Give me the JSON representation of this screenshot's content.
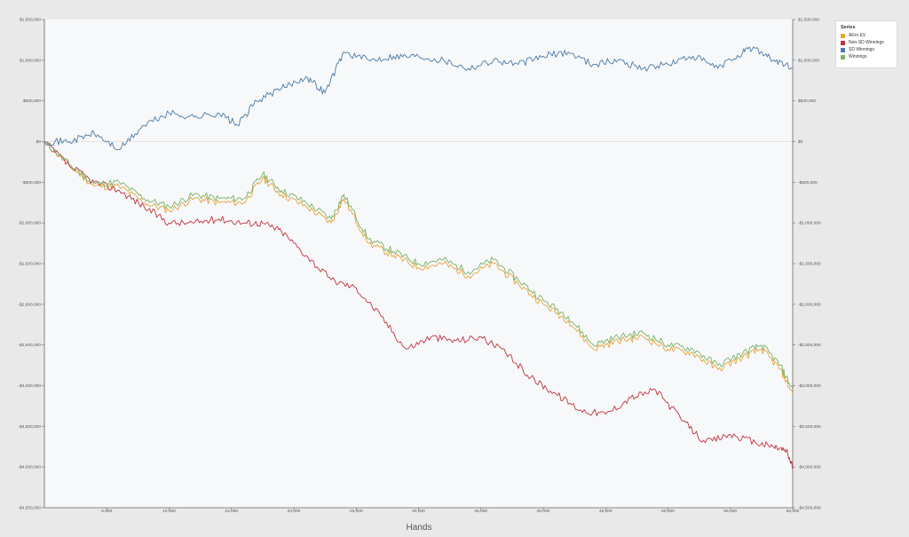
{
  "chart_data": {
    "type": "line",
    "xlabel": "Hands",
    "ylabel": "",
    "xlim": [
      0,
      60000
    ],
    "ylim": [
      -4500000,
      1500000
    ],
    "grid": false,
    "legend_position": "top-right",
    "legend_title": "Series",
    "x_ticks": [
      {
        "value": 5000,
        "label": "5,000"
      },
      {
        "value": 10000,
        "label": "10,000"
      },
      {
        "value": 15000,
        "label": "15,000"
      },
      {
        "value": 20000,
        "label": "20,000"
      },
      {
        "value": 25000,
        "label": "25,000"
      },
      {
        "value": 30000,
        "label": "30,000"
      },
      {
        "value": 35000,
        "label": "35,000"
      },
      {
        "value": 40000,
        "label": "40,000"
      },
      {
        "value": 45000,
        "label": "45,000"
      },
      {
        "value": 50000,
        "label": "50,000"
      },
      {
        "value": 55000,
        "label": "55,000"
      },
      {
        "value": 60000,
        "label": "60,000"
      }
    ],
    "y_ticks": [
      {
        "value": 1500000,
        "label": "$1,500,000"
      },
      {
        "value": 1000000,
        "label": "$1,000,000"
      },
      {
        "value": 500000,
        "label": "$500,000"
      },
      {
        "value": 0,
        "label": "$0"
      },
      {
        "value": -500000,
        "label": "-$500,000"
      },
      {
        "value": -1000000,
        "label": "-$1,000,000"
      },
      {
        "value": -1500000,
        "label": "-$1,500,000"
      },
      {
        "value": -2000000,
        "label": "-$2,000,000"
      },
      {
        "value": -2500000,
        "label": "-$2,500,000"
      },
      {
        "value": -3000000,
        "label": "-$3,000,000"
      },
      {
        "value": -3500000,
        "label": "-$3,500,000"
      },
      {
        "value": -4000000,
        "label": "-$4,000,000"
      },
      {
        "value": -4500000,
        "label": "-$4,500,000"
      }
    ],
    "series": [
      {
        "name": "All-in EV",
        "color": "#e8a33a",
        "x": [
          0,
          2000,
          4000,
          6000,
          8000,
          10000,
          12000,
          14000,
          16000,
          17500,
          19000,
          21000,
          23000,
          24000,
          26000,
          28000,
          30000,
          32000,
          34000,
          36000,
          38000,
          40000,
          42000,
          44000,
          46000,
          48000,
          50000,
          52000,
          54000,
          56000,
          57500,
          59000,
          60000
        ],
        "y": [
          0,
          -300000,
          -550000,
          -550000,
          -750000,
          -850000,
          -700000,
          -750000,
          -750000,
          -450000,
          -650000,
          -800000,
          -1000000,
          -700000,
          -1250000,
          -1400000,
          -1550000,
          -1500000,
          -1650000,
          -1500000,
          -1750000,
          -2000000,
          -2200000,
          -2550000,
          -2450000,
          -2400000,
          -2550000,
          -2600000,
          -2800000,
          -2650000,
          -2550000,
          -2800000,
          -3100000
        ]
      },
      {
        "name": "Non-SD Winnings",
        "color": "#c0333f",
        "x": [
          0,
          2000,
          4000,
          6000,
          8000,
          10000,
          12000,
          14000,
          16000,
          17500,
          19000,
          21000,
          23000,
          25000,
          27000,
          29000,
          31000,
          33000,
          35000,
          37000,
          39000,
          41000,
          43000,
          45000,
          47000,
          49000,
          51000,
          53000,
          55000,
          57000,
          58500,
          59500,
          60000
        ],
        "y": [
          0,
          -300000,
          -500000,
          -600000,
          -800000,
          -1000000,
          -1000000,
          -950000,
          -1000000,
          -1000000,
          -1100000,
          -1400000,
          -1700000,
          -1800000,
          -2150000,
          -2550000,
          -2400000,
          -2450000,
          -2400000,
          -2600000,
          -2900000,
          -3100000,
          -3300000,
          -3350000,
          -3150000,
          -3050000,
          -3400000,
          -3700000,
          -3600000,
          -3700000,
          -3750000,
          -3800000,
          -4000000
        ]
      },
      {
        "name": "SD Winnings",
        "color": "#4a7aa8",
        "x": [
          0,
          2000,
          4000,
          6000,
          8000,
          10000,
          12000,
          14000,
          15500,
          17000,
          19000,
          21000,
          22500,
          24000,
          26000,
          28000,
          30000,
          32000,
          34000,
          36000,
          38000,
          40000,
          42000,
          44000,
          46000,
          48000,
          50000,
          52000,
          54000,
          56000,
          57000,
          58500,
          60000
        ],
        "y": [
          0,
          0,
          100000,
          -100000,
          200000,
          350000,
          300000,
          350000,
          200000,
          500000,
          650000,
          800000,
          600000,
          1100000,
          1000000,
          1050000,
          1050000,
          1000000,
          900000,
          1000000,
          950000,
          1050000,
          1100000,
          950000,
          1000000,
          900000,
          950000,
          1050000,
          900000,
          1100000,
          1150000,
          1000000,
          900000
        ]
      },
      {
        "name": "Winnings",
        "color": "#79b269",
        "x": [
          0,
          2000,
          4000,
          6000,
          8000,
          10000,
          12000,
          14000,
          16000,
          17500,
          19000,
          21000,
          23000,
          24000,
          26000,
          28000,
          30000,
          32000,
          34000,
          36000,
          38000,
          40000,
          42000,
          44000,
          46000,
          48000,
          50000,
          52000,
          54000,
          56000,
          57500,
          59000,
          60000
        ],
        "y": [
          0,
          -280000,
          -520000,
          -500000,
          -700000,
          -800000,
          -650000,
          -700000,
          -700000,
          -400000,
          -600000,
          -750000,
          -950000,
          -650000,
          -1200000,
          -1350000,
          -1500000,
          -1450000,
          -1600000,
          -1450000,
          -1700000,
          -1950000,
          -2150000,
          -2500000,
          -2400000,
          -2350000,
          -2500000,
          -2550000,
          -2750000,
          -2600000,
          -2500000,
          -2750000,
          -3050000
        ]
      }
    ]
  }
}
